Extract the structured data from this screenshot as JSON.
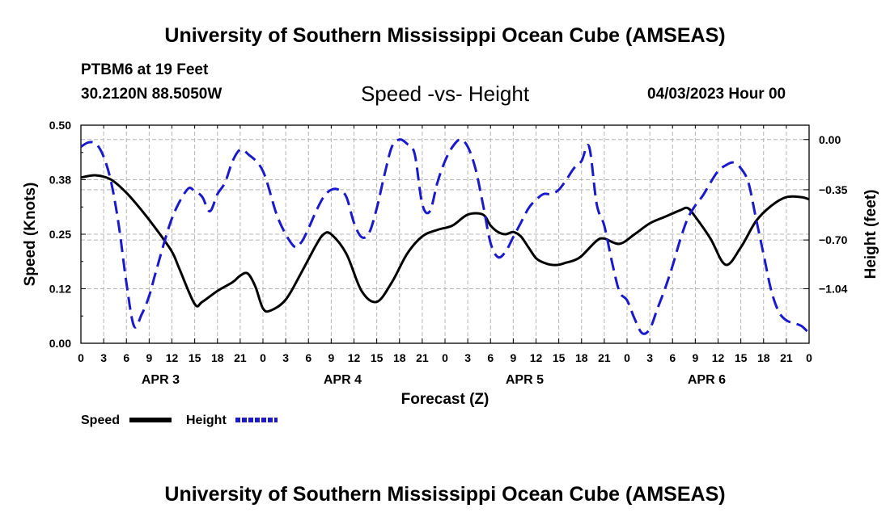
{
  "header": {
    "title": "University of Southern Mississippi Ocean Cube (AMSEAS)",
    "station": "PTBM6 at 19 Feet",
    "coords": "30.2120N  88.5050W",
    "datetime": "04/03/2023 Hour 00",
    "footer_title": "University of Southern Mississippi Ocean Cube (AMSEAS)"
  },
  "colors": {
    "speed": "#000000",
    "height": "#1a1acc",
    "grid": "#b4b4b4"
  },
  "chart_data": {
    "type": "line",
    "title": "Speed -vs- Height",
    "xlabel": "Forecast (Z)",
    "ylabel_left": "Speed (Knots)",
    "ylabel_right": "Height (feet)",
    "x_hour_range": [
      0,
      96
    ],
    "x_tick_step_hours": 3,
    "x_tick_labels": [
      "0",
      "3",
      "6",
      "9",
      "12",
      "15",
      "18",
      "21",
      "0",
      "3",
      "6",
      "9",
      "12",
      "15",
      "18",
      "21",
      "0",
      "3",
      "6",
      "9",
      "12",
      "15",
      "18",
      "21",
      "0",
      "3",
      "6",
      "9",
      "12",
      "15",
      "18",
      "21",
      "0"
    ],
    "day_labels": [
      {
        "label": "APR 3",
        "hour": 10.5
      },
      {
        "label": "APR 4",
        "hour": 34.5
      },
      {
        "label": "APR 5",
        "hour": 58.5
      },
      {
        "label": "APR 6",
        "hour": 82.5
      }
    ],
    "y_left": {
      "range": [
        0,
        0.5
      ],
      "ticks": [
        0,
        0.125,
        0.25,
        0.375,
        0.5
      ],
      "tick_labels": [
        "0.00",
        "0.12",
        "0.25",
        "0.38",
        "0.50"
      ]
    },
    "y_right": {
      "range": [
        -1.42,
        0.1
      ],
      "ticks": [
        0,
        -0.35,
        -0.7,
        -1.04
      ],
      "tick_labels": [
        "0.00",
        "−0.35",
        "−0.70",
        "−1.04"
      ]
    },
    "series": [
      {
        "name": "Speed",
        "axis": "left",
        "style": "solid",
        "x": [
          0,
          2,
          4,
          6,
          8,
          10,
          12,
          13,
          15,
          16,
          18,
          20,
          21,
          22,
          23,
          24,
          25,
          27,
          29,
          31,
          32,
          33,
          35,
          37,
          39,
          41,
          43,
          45,
          47,
          49,
          51,
          53,
          54,
          55,
          56,
          57,
          58,
          59,
          60,
          61,
          62,
          63,
          64,
          65,
          66,
          68,
          69,
          71,
          73,
          75,
          77,
          79,
          80,
          81,
          83,
          85,
          87,
          89,
          91,
          93,
          95,
          96
        ],
        "y": [
          0.38,
          0.385,
          0.375,
          0.345,
          0.305,
          0.26,
          0.21,
          0.17,
          0.09,
          0.095,
          0.12,
          0.14,
          0.155,
          0.16,
          0.13,
          0.08,
          0.075,
          0.1,
          0.16,
          0.225,
          0.25,
          0.25,
          0.205,
          0.12,
          0.095,
          0.14,
          0.205,
          0.245,
          0.26,
          0.27,
          0.295,
          0.295,
          0.27,
          0.255,
          0.25,
          0.255,
          0.245,
          0.22,
          0.195,
          0.185,
          0.18,
          0.18,
          0.185,
          0.19,
          0.2,
          0.235,
          0.24,
          0.228,
          0.25,
          0.275,
          0.29,
          0.305,
          0.31,
          0.29,
          0.24,
          0.18,
          0.22,
          0.28,
          0.315,
          0.335,
          0.335,
          0.33
        ]
      },
      {
        "name": "Height",
        "axis": "right",
        "style": "dashed",
        "x": [
          0,
          1,
          2,
          3,
          4,
          5,
          6,
          7,
          8,
          9,
          10,
          12,
          14,
          15,
          16,
          17,
          18,
          19,
          20,
          21,
          22,
          24,
          26,
          28,
          29,
          30,
          31,
          32,
          33,
          34,
          35,
          36,
          37,
          38,
          39,
          40,
          41,
          42,
          43,
          44,
          45,
          46,
          47,
          48,
          49,
          50,
          51,
          52,
          53,
          54,
          55,
          56,
          57,
          58,
          59,
          60,
          61,
          62,
          63,
          64,
          65,
          66,
          67,
          68,
          69,
          70,
          71,
          72,
          73,
          74,
          75,
          76,
          77,
          78,
          79,
          80,
          81,
          82,
          83,
          84,
          85,
          86,
          87,
          88,
          89,
          90,
          91,
          92,
          93,
          94,
          95,
          96
        ],
        "y": [
          -0.05,
          -0.02,
          -0.03,
          -0.12,
          -0.3,
          -0.6,
          -1.0,
          -1.3,
          -1.22,
          -1.09,
          -0.9,
          -0.55,
          -0.35,
          -0.36,
          -0.4,
          -0.5,
          -0.38,
          -0.3,
          -0.15,
          -0.07,
          -0.1,
          -0.22,
          -0.55,
          -0.74,
          -0.72,
          -0.62,
          -0.5,
          -0.4,
          -0.35,
          -0.35,
          -0.4,
          -0.58,
          -0.68,
          -0.65,
          -0.48,
          -0.25,
          -0.05,
          0.0,
          -0.03,
          -0.1,
          -0.45,
          -0.5,
          -0.3,
          -0.15,
          -0.05,
          0.0,
          -0.05,
          -0.2,
          -0.45,
          -0.72,
          -0.82,
          -0.78,
          -0.68,
          -0.58,
          -0.48,
          -0.42,
          -0.38,
          -0.38,
          -0.35,
          -0.28,
          -0.2,
          -0.15,
          -0.05,
          -0.45,
          -0.6,
          -0.85,
          -1.06,
          -1.12,
          -1.25,
          -1.35,
          -1.32,
          -1.18,
          -1.04,
          -0.88,
          -0.7,
          -0.55,
          -0.46,
          -0.39,
          -0.3,
          -0.22,
          -0.18,
          -0.16,
          -0.2,
          -0.3,
          -0.55,
          -0.8,
          -1.05,
          -1.2,
          -1.26,
          -1.28,
          -1.3,
          -1.35
        ]
      }
    ],
    "legend": [
      {
        "label": "Speed",
        "series": "Speed"
      },
      {
        "label": "Height",
        "series": "Height"
      }
    ]
  }
}
